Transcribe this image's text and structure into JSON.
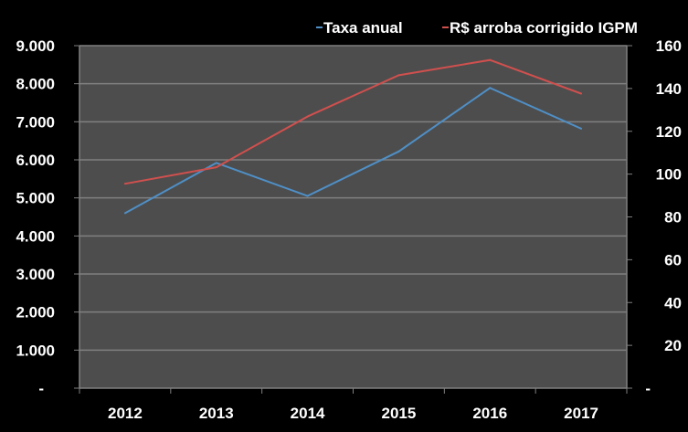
{
  "chart_data": {
    "type": "line",
    "categories": [
      "2012",
      "2013",
      "2014",
      "2015",
      "2016",
      "2017"
    ],
    "series": [
      {
        "name": "Taxa anual",
        "axis": "left",
        "color": "#4f8fc6",
        "values": [
          4600,
          5920,
          5050,
          6220,
          7890,
          6820
        ]
      },
      {
        "name": "R$ arroba corrigido IGPM",
        "axis": "right",
        "color": "#d0504e",
        "values": [
          95.5,
          103.2,
          126.9,
          146.2,
          153.3,
          137.6
        ]
      }
    ],
    "left_axis": {
      "ylim": [
        0,
        9000
      ],
      "tick_labels": [
        "-",
        "1.000",
        "2.000",
        "3.000",
        "4.000",
        "5.000",
        "6.000",
        "7.000",
        "8.000",
        "9.000"
      ]
    },
    "right_axis": {
      "ylim": [
        0,
        160
      ],
      "tick_labels": [
        "-",
        "20",
        "40",
        "60",
        "80",
        "100",
        "120",
        "140",
        "160"
      ]
    },
    "grid": true,
    "legend": "top-right",
    "plot_background": "#4d4d4d",
    "background": "#000000"
  }
}
